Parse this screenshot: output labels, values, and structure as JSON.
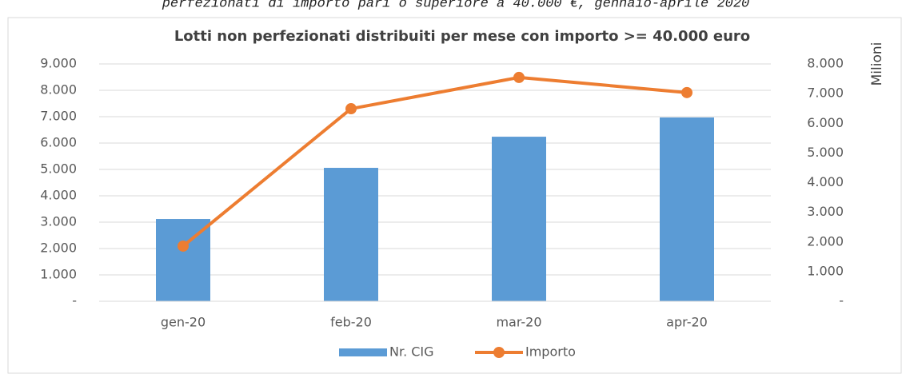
{
  "caption": "perfezionati di importo pari o superiore a 40.000 €, gennaio-aprile 2020",
  "chart_data": {
    "type": "bar-line",
    "title": "Lotti non perfezionati distribuiti per mese con importo >= 40.000 euro",
    "categories": [
      "gen-20",
      "feb-20",
      "mar-20",
      "apr-20"
    ],
    "series": [
      {
        "name": "Nr. CIG",
        "type": "bar",
        "color": "#5b9bd5",
        "values": [
          3120,
          5060,
          6240,
          6970
        ]
      },
      {
        "name": "Importo",
        "type": "line",
        "axis": "y2",
        "color": "#ed7d31",
        "values": [
          1860,
          6490,
          7545,
          7035
        ]
      }
    ],
    "ylim": [
      0,
      9000
    ],
    "yticks": [
      {
        "value": 0,
        "label": "-"
      },
      {
        "value": 1000,
        "label": "1.000"
      },
      {
        "value": 2000,
        "label": "2.000"
      },
      {
        "value": 3000,
        "label": "3.000"
      },
      {
        "value": 4000,
        "label": "4.000"
      },
      {
        "value": 5000,
        "label": "5.000"
      },
      {
        "value": 6000,
        "label": "6.000"
      },
      {
        "value": 7000,
        "label": "7.000"
      },
      {
        "value": 8000,
        "label": "8.000"
      },
      {
        "value": 9000,
        "label": "9.000"
      }
    ],
    "y2lim": [
      0,
      8000
    ],
    "y2ticks": [
      {
        "value": 0,
        "label": "-"
      },
      {
        "value": 1000,
        "label": "1.000"
      },
      {
        "value": 2000,
        "label": "2.000"
      },
      {
        "value": 3000,
        "label": "3.000"
      },
      {
        "value": 4000,
        "label": "4.000"
      },
      {
        "value": 5000,
        "label": "5.000"
      },
      {
        "value": 6000,
        "label": "6.000"
      },
      {
        "value": 7000,
        "label": "7.000"
      },
      {
        "value": 8000,
        "label": "8.000"
      }
    ],
    "y2label": "Milioni",
    "grid": true,
    "legend": "bottom"
  }
}
